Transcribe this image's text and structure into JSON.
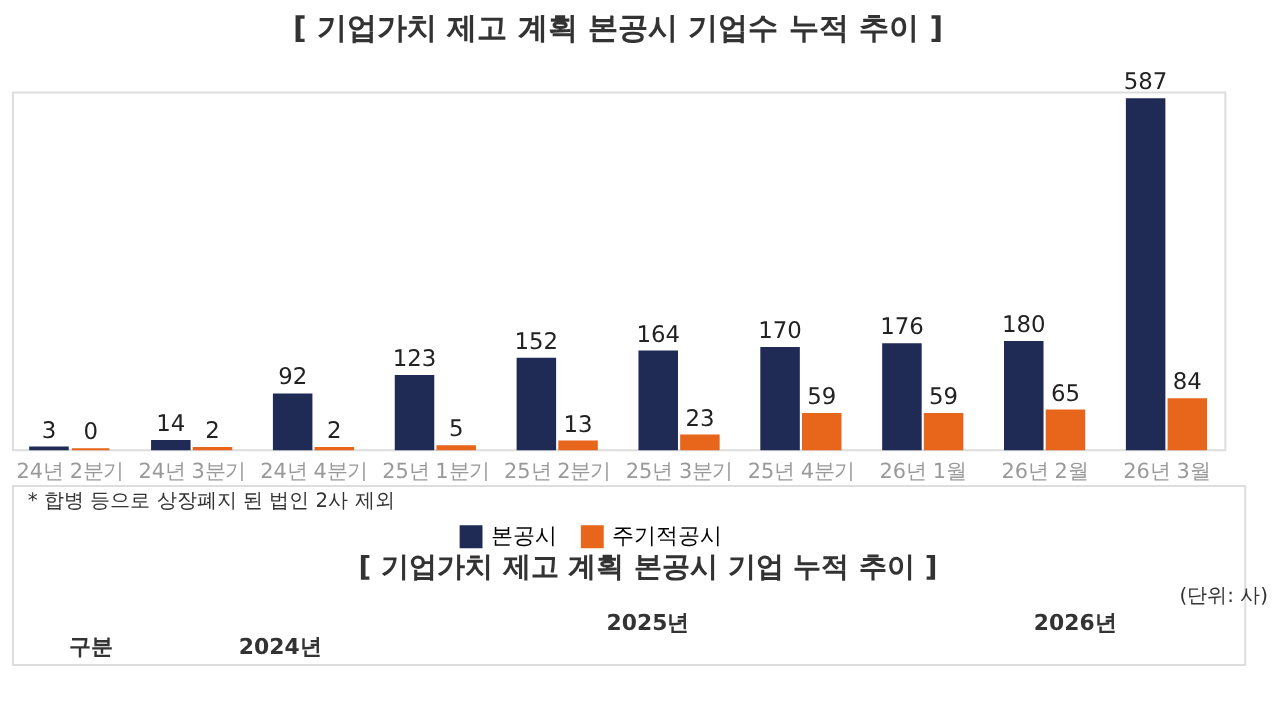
{
  "chart_data": {
    "type": "bar",
    "title": "[ 기업가치 제고 계획 본공시 기업수 누적 추이 ]",
    "categories": [
      "24년 2분기",
      "24년 3분기",
      "24년 4분기",
      "25년 1분기",
      "25년 2분기",
      "25년 3분기",
      "25년 4분기",
      "26년 1월",
      "26년 2월",
      "26년 3월"
    ],
    "series": [
      {
        "name": "본공시",
        "color": "#1f2a55",
        "values": [
          3,
          14,
          92,
          123,
          152,
          164,
          170,
          176,
          180,
          587
        ]
      },
      {
        "name": "주기적공시",
        "color": "#e8661c",
        "values": [
          0,
          2,
          2,
          5,
          13,
          23,
          59,
          59,
          65,
          84
        ]
      }
    ],
    "data_labels": true,
    "legend": "bottom",
    "grid": false,
    "tick_labels": "x",
    "annotations": [
      "* 합병 등으로 상장폐지 된 법인 2사 제외",
      "[ 기업가치 제고 계획 본공시 기업 누적 추이 ]",
      "(단위: 사)",
      "구분",
      "2024년",
      "2025년",
      "2026년"
    ]
  }
}
